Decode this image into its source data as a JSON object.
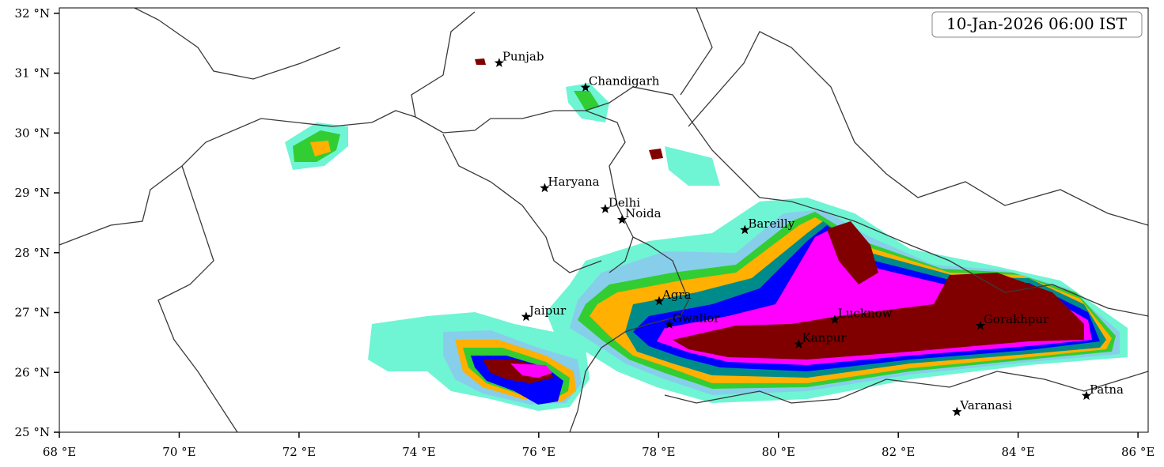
{
  "map": {
    "timestamp": "10-Jan-2026 06:00 IST",
    "xlim": [
      68,
      86.17
    ],
    "ylim": [
      25,
      32.09
    ],
    "xticks": [
      {
        "value": 68,
        "label": "68 °E"
      },
      {
        "value": 70,
        "label": "70 °E"
      },
      {
        "value": 72,
        "label": "72 °E"
      },
      {
        "value": 74,
        "label": "74 °E"
      },
      {
        "value": 76,
        "label": "76 °E"
      },
      {
        "value": 78,
        "label": "78 °E"
      },
      {
        "value": 80,
        "label": "80 °E"
      },
      {
        "value": 82,
        "label": "82 °E"
      },
      {
        "value": 84,
        "label": "84 °E"
      },
      {
        "value": 86,
        "label": "86 °E"
      }
    ],
    "yticks": [
      {
        "value": 25,
        "label": "25 °N"
      },
      {
        "value": 26,
        "label": "26 °N"
      },
      {
        "value": 27,
        "label": "27 °N"
      },
      {
        "value": 28,
        "label": "28 °N"
      },
      {
        "value": 29,
        "label": "29 °N"
      },
      {
        "value": 30,
        "label": "30 °N"
      },
      {
        "value": 31,
        "label": "31 °N"
      },
      {
        "value": 32,
        "label": "32 °N"
      }
    ],
    "cities": [
      {
        "name": "Punjab",
        "lon": 75.34,
        "lat": 31.17
      },
      {
        "name": "Chandigarh",
        "lon": 76.78,
        "lat": 30.76
      },
      {
        "name": "Haryana",
        "lon": 76.1,
        "lat": 29.08
      },
      {
        "name": "Delhi",
        "lon": 77.11,
        "lat": 28.73
      },
      {
        "name": "Noida",
        "lon": 77.39,
        "lat": 28.55
      },
      {
        "name": "Bareilly",
        "lon": 79.44,
        "lat": 28.38
      },
      {
        "name": "Agra",
        "lon": 78.01,
        "lat": 27.19
      },
      {
        "name": "Jaipur",
        "lon": 75.79,
        "lat": 26.93
      },
      {
        "name": "Gwalior",
        "lon": 78.18,
        "lat": 26.8
      },
      {
        "name": "Lucknow",
        "lon": 80.94,
        "lat": 26.88
      },
      {
        "name": "Gorakhpur",
        "lon": 83.37,
        "lat": 26.78
      },
      {
        "name": "Kanpur",
        "lon": 80.34,
        "lat": 26.47
      },
      {
        "name": "Varanasi",
        "lon": 82.98,
        "lat": 25.34
      },
      {
        "name": "Patna",
        "lon": 85.14,
        "lat": 25.61
      }
    ]
  }
}
